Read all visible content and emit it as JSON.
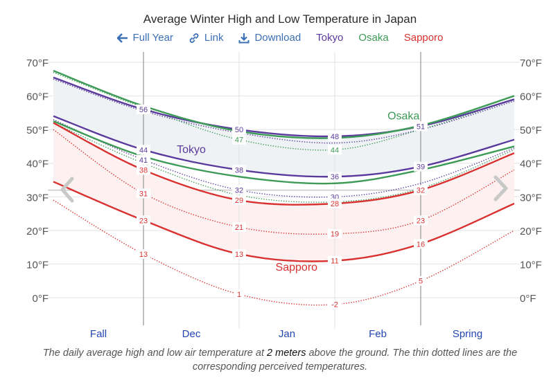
{
  "title": "Average Winter High and Low Temperature in Japan",
  "toolbar": {
    "full_year": {
      "label": "Full Year",
      "icon": "arrow-left-icon"
    },
    "link": {
      "label": "Link",
      "icon": "link-icon"
    },
    "download": {
      "label": "Download",
      "icon": "download-icon"
    },
    "tokyo": "Tokyo",
    "osaka": "Osaka",
    "sapporo": "Sapporo"
  },
  "colors": {
    "tokyo": "#5b3a9e",
    "osaka": "#3d9b57",
    "sapporo": "#d8312f",
    "accent": "#3b6fb6",
    "xlabel": "#2346b5"
  },
  "caption": {
    "part1": "The daily average high and low air temperature at ",
    "emph": "2 meters",
    "part2": " above the ground. The thin dotted lines are the corresponding perceived temperatures."
  },
  "nav": {
    "prev": "chevron-left-icon",
    "next": "chevron-right-icon"
  },
  "chart_data": {
    "type": "line",
    "title": "Average Winter High and Low Temperature in Japan",
    "xlabel": "",
    "ylabel": "",
    "ylim": [
      -8,
      76
    ],
    "yticks": [
      0,
      10,
      20,
      30,
      40,
      50,
      60,
      70
    ],
    "ytick_labels": [
      "0°F",
      "10°F",
      "20°F",
      "30°F",
      "40°F",
      "50°F",
      "60°F",
      "70°F"
    ],
    "freezing_line": 32,
    "grid": true,
    "x_points": [
      "Fall start",
      "Dec 1",
      "Jan 1",
      "Feb 1",
      "Mar 1",
      "Spring end"
    ],
    "x_sections": [
      "Fall",
      "Dec",
      "Jan",
      "Feb",
      "Spring"
    ],
    "series": [
      {
        "name": "Tokyo high",
        "city": "tokyo",
        "kind": "solid",
        "values": [
          65.5,
          56,
          50,
          48,
          51,
          59
        ],
        "labels": [
          null,
          56,
          50,
          48,
          51,
          null
        ]
      },
      {
        "name": "Tokyo low",
        "city": "tokyo",
        "kind": "solid",
        "values": [
          54,
          44,
          38,
          36,
          39,
          47
        ],
        "labels": [
          null,
          44,
          38,
          36,
          39,
          null
        ]
      },
      {
        "name": "Tokyo high perceived",
        "city": "tokyo",
        "kind": "dotted",
        "values": [
          65,
          55.5,
          49,
          46,
          50,
          58.5
        ],
        "labels": [
          null,
          null,
          null,
          null,
          null,
          null
        ]
      },
      {
        "name": "Tokyo low perceived",
        "city": "tokyo",
        "kind": "dotted",
        "values": [
          53,
          41,
          32,
          30,
          34,
          44.5
        ],
        "labels": [
          null,
          41,
          32,
          30,
          null,
          null
        ]
      },
      {
        "name": "Osaka high",
        "city": "osaka",
        "kind": "solid",
        "values": [
          67.5,
          57,
          49.5,
          47.5,
          51.2,
          60
        ],
        "labels": [
          null,
          null,
          null,
          null,
          null,
          null
        ]
      },
      {
        "name": "Osaka low",
        "city": "osaka",
        "kind": "solid",
        "values": [
          52.5,
          42,
          36,
          34,
          38,
          45
        ],
        "labels": [
          null,
          null,
          null,
          null,
          null,
          null
        ]
      },
      {
        "name": "Osaka high perceived",
        "city": "osaka",
        "kind": "dotted",
        "values": [
          67,
          56.5,
          47,
          44,
          50,
          59
        ],
        "labels": [
          null,
          null,
          47,
          44,
          null,
          null
        ]
      },
      {
        "name": "Osaka low perceived",
        "city": "osaka",
        "kind": "dotted",
        "values": [
          52,
          40,
          30.5,
          28.5,
          32.5,
          44
        ],
        "labels": [
          null,
          null,
          null,
          null,
          null,
          null
        ]
      },
      {
        "name": "Sapporo high",
        "city": "sapporo",
        "kind": "solid",
        "values": [
          52,
          38,
          29,
          28,
          32,
          43
        ],
        "labels": [
          null,
          38,
          29,
          28,
          32,
          null
        ]
      },
      {
        "name": "Sapporo low",
        "city": "sapporo",
        "kind": "solid",
        "values": [
          34.5,
          23,
          13,
          11,
          16,
          28
        ],
        "labels": [
          null,
          23,
          13,
          11,
          16,
          null
        ]
      },
      {
        "name": "Sapporo high perceived",
        "city": "sapporo",
        "kind": "dotted",
        "values": [
          50,
          31,
          21,
          19,
          23,
          38
        ],
        "labels": [
          null,
          31,
          21,
          19,
          23,
          null
        ]
      },
      {
        "name": "Sapporo low perceived",
        "city": "sapporo",
        "kind": "dotted",
        "values": [
          29,
          13,
          1,
          -2,
          5,
          20
        ],
        "labels": [
          null,
          13,
          1,
          -2,
          5,
          null
        ]
      }
    ],
    "bands": [
      {
        "city": "tokyo",
        "upper": "Tokyo high",
        "lower": "Tokyo low",
        "fill": "#eef2f4"
      },
      {
        "city": "sapporo",
        "upper": "Sapporo high",
        "lower": "Sapporo low",
        "fill": "#fdf0f0"
      }
    ],
    "annotations": [
      {
        "text": "Tokyo",
        "city": "tokyo",
        "x_point": 1.5,
        "y": 43
      },
      {
        "text": "Osaka",
        "city": "osaka",
        "x_point": 3.8,
        "y": 53
      },
      {
        "text": "Sapporo",
        "city": "sapporo",
        "x_point": 2.6,
        "y": 8
      }
    ]
  }
}
